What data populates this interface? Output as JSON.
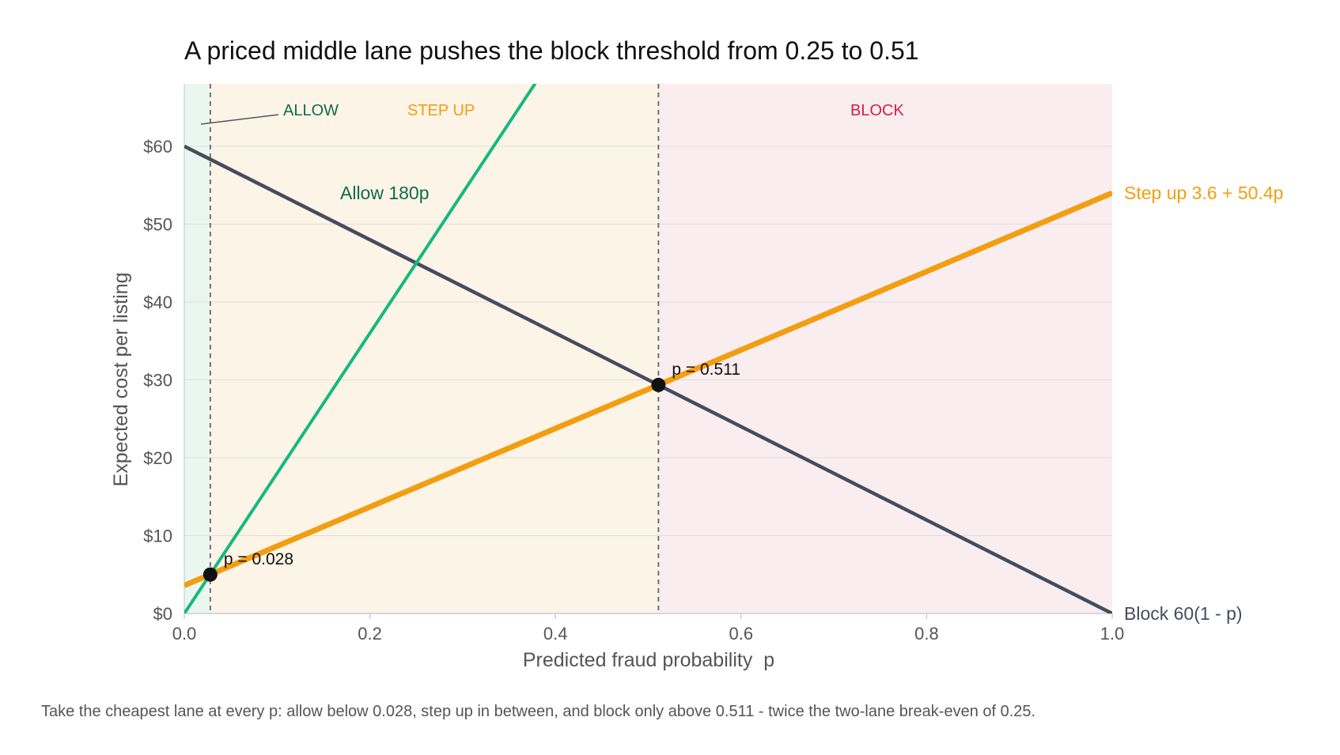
{
  "chart_data": {
    "type": "line",
    "title": "A priced middle lane pushes the block threshold from 0.25 to 0.51",
    "xlabel": "Predicted fraud probability  p",
    "ylabel": "Expected cost per listing",
    "xlim": [
      0,
      1
    ],
    "ylim": [
      0,
      65
    ],
    "x_ticks": [
      0,
      0.2,
      0.4,
      0.6,
      0.8,
      1.0
    ],
    "x_tick_labels": [
      "0.0",
      "0.2",
      "0.4",
      "0.6",
      "0.8",
      "1.0"
    ],
    "y_ticks": [
      0,
      10,
      20,
      30,
      40,
      50,
      60
    ],
    "y_tick_labels": [
      "$0",
      "$10",
      "$20",
      "$30",
      "$40",
      "$50",
      "$60"
    ],
    "grid": "horizontal",
    "regions": [
      {
        "label": "ALLOW",
        "from": 0,
        "to": 0.028,
        "color": "#eaf7f1",
        "label_color": "#116a4a"
      },
      {
        "label": "STEP UP",
        "from": 0.028,
        "to": 0.511,
        "color": "#fcf4e6",
        "label_color": "#f29e12"
      },
      {
        "label": "BLOCK",
        "from": 0.511,
        "to": 1.0,
        "color": "#faedf0",
        "label_color": "#d81b4a"
      }
    ],
    "series": [
      {
        "name": "Allow",
        "formula": "180p",
        "intercept": 0,
        "slope": 180,
        "color": "#14b97e",
        "label_color": "#116a4a",
        "label_pos": "inline"
      },
      {
        "name": "Step up",
        "formula": "3.6 + 50.4p",
        "intercept": 3.6,
        "slope": 50.4,
        "color": "#f29e12",
        "label_color": "#f29e12",
        "label_pos": "right"
      },
      {
        "name": "Block",
        "formula": "60(1 - p)",
        "intercept": 60,
        "slope": -60,
        "color": "#454c5e",
        "label_color": "#454c5e",
        "label_pos": "right"
      }
    ],
    "thresholds": [
      {
        "x": 0.028,
        "y": 5.0,
        "label": "p = 0.028"
      },
      {
        "x": 0.511,
        "y": 29.35,
        "label": "p = 0.511"
      }
    ]
  },
  "caption": "Take the cheapest lane at every p: allow below 0.028, step up in between, and block only above 0.511 - twice the two-lane break-even of 0.25.",
  "colors": {
    "axis": "#c9cdd4",
    "grid": "#dedede",
    "tick_text": "#555555",
    "title": "#111111",
    "caption": "#555555",
    "marker": "#111111"
  }
}
